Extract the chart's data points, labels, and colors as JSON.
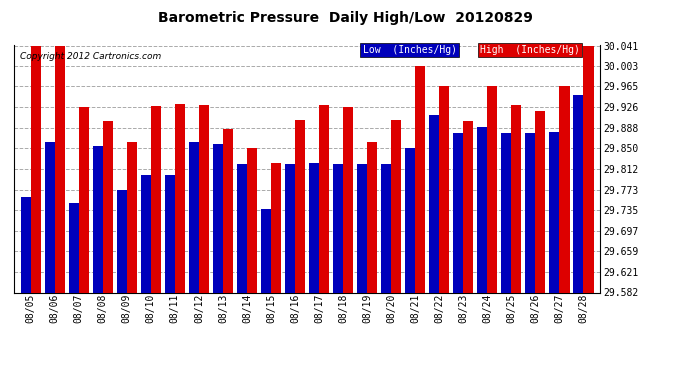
{
  "title": "Barometric Pressure  Daily High/Low  20120829",
  "copyright": "Copyright 2012 Cartronics.com",
  "legend_low": "Low  (Inches/Hg)",
  "legend_high": "High  (Inches/Hg)",
  "low_color": "#0000bb",
  "high_color": "#dd0000",
  "background_color": "#ffffff",
  "grid_color": "#aaaaaa",
  "dates": [
    "08/05",
    "08/06",
    "08/07",
    "08/08",
    "08/09",
    "08/10",
    "08/11",
    "08/12",
    "08/13",
    "08/14",
    "08/15",
    "08/16",
    "08/17",
    "08/18",
    "08/19",
    "08/20",
    "08/21",
    "08/22",
    "08/23",
    "08/24",
    "08/25",
    "08/26",
    "08/27",
    "08/28"
  ],
  "low_values": [
    29.759,
    29.862,
    29.748,
    29.855,
    29.773,
    29.8,
    29.8,
    29.862,
    29.858,
    29.82,
    29.738,
    29.82,
    29.822,
    29.82,
    29.82,
    29.82,
    29.85,
    29.912,
    29.878,
    29.89,
    29.878,
    29.878,
    29.88,
    29.95
  ],
  "high_values": [
    30.041,
    30.041,
    29.926,
    29.9,
    29.862,
    29.928,
    29.932,
    29.93,
    29.885,
    29.85,
    29.823,
    29.903,
    29.93,
    29.926,
    29.862,
    29.903,
    30.003,
    29.965,
    29.9,
    29.965,
    29.93,
    29.92,
    29.965,
    30.041
  ],
  "ymin": 29.582,
  "ymax": 30.041,
  "yticks": [
    29.582,
    29.621,
    29.659,
    29.697,
    29.735,
    29.773,
    29.812,
    29.85,
    29.888,
    29.926,
    29.965,
    30.003,
    30.041
  ]
}
